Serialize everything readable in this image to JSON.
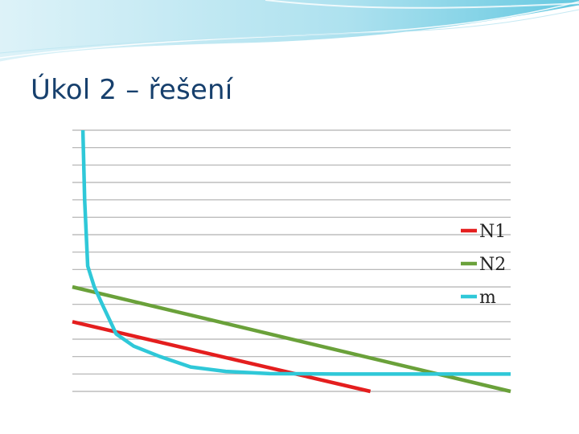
{
  "slide": {
    "title": "Úkol 2 – řešení"
  },
  "colors": {
    "title": "#17406d",
    "gridline": "#b0b0b0",
    "banner_light": "#d7f0f7",
    "banner_mid": "#7fd0e4",
    "banner_dark": "#3fb8d6"
  },
  "chart_data": {
    "type": "line",
    "title": "",
    "xlabel": "",
    "ylabel": "",
    "xlim": [
      0,
      100
    ],
    "ylim": [
      0,
      15
    ],
    "grid": true,
    "grid_count": 16,
    "legend_position": "right",
    "series": [
      {
        "name": "N1",
        "color": "#e41e1e",
        "points": [
          [
            0,
            4.0
          ],
          [
            68,
            0
          ]
        ]
      },
      {
        "name": "N2",
        "color": "#6aa13a",
        "points": [
          [
            0,
            6.0
          ],
          [
            100,
            0
          ]
        ]
      },
      {
        "name": "m",
        "color": "#2fc8d8",
        "points": [
          [
            2.4,
            15.0
          ],
          [
            2.8,
            11.0
          ],
          [
            3.5,
            7.2
          ],
          [
            5,
            6.0
          ],
          [
            7,
            4.9
          ],
          [
            10,
            3.3
          ],
          [
            14,
            2.6
          ],
          [
            20,
            2.0
          ],
          [
            27,
            1.4
          ],
          [
            35,
            1.15
          ],
          [
            45,
            1.02
          ],
          [
            60,
            1.0
          ],
          [
            80,
            1.0
          ],
          [
            100,
            1.0
          ]
        ]
      }
    ]
  }
}
